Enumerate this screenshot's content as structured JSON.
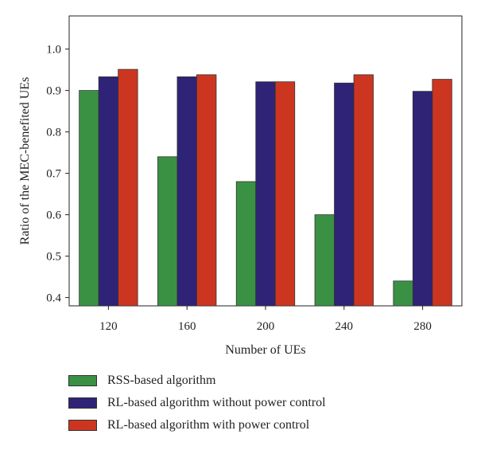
{
  "chart_data": {
    "type": "bar",
    "categories": [
      "120",
      "160",
      "200",
      "240",
      "280"
    ],
    "series": [
      {
        "name": "RSS-based algorithm",
        "color": "#3a9144",
        "values": [
          0.9,
          0.74,
          0.68,
          0.6,
          0.44
        ]
      },
      {
        "name": "RL-based algorithm without power control",
        "color": "#2e2376",
        "values": [
          0.933,
          0.933,
          0.921,
          0.918,
          0.898
        ]
      },
      {
        "name": "RL-based algorithm with power control",
        "color": "#cc3620",
        "values": [
          0.951,
          0.938,
          0.921,
          0.938,
          0.927
        ]
      }
    ],
    "xlabel": "Number of UEs",
    "ylabel": "Ratio of the MEC-benefited UEs",
    "ylim": [
      0.38,
      1.08
    ],
    "yticks": [
      0.4,
      0.5,
      0.6,
      0.7,
      0.8,
      0.9,
      1.0
    ],
    "ytick_labels": [
      "0.4",
      "0.5",
      "0.6",
      "0.7",
      "0.8",
      "0.9",
      "1.0"
    ],
    "legend_position": "bottom-left"
  }
}
